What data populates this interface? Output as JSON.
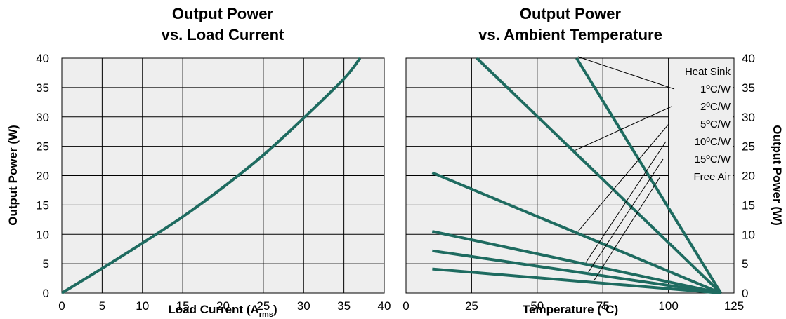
{
  "colors": {
    "series": "#1e6b60",
    "plot_bg": "#eeeeee",
    "grid": "#000000"
  },
  "chart_data": [
    {
      "type": "line",
      "title_line1": "Output Power",
      "title_line2": "vs. Load Current",
      "xlabel": "Load Current (A",
      "xlabel_sub": "rms",
      "xlabel_end": ")",
      "ylabel": "Output Power (W)",
      "xlim": [
        0,
        40
      ],
      "ylim": [
        0,
        40
      ],
      "xticks": [
        0,
        5,
        10,
        15,
        20,
        25,
        30,
        35,
        40
      ],
      "yticks": [
        0,
        5,
        10,
        15,
        20,
        25,
        30,
        35,
        40
      ],
      "grid": true,
      "series": [
        {
          "x": [
            0,
            5,
            10,
            15,
            20,
            25,
            30,
            35,
            37
          ],
          "y": [
            0,
            4.2,
            8.5,
            13.0,
            18.0,
            23.5,
            29.8,
            36.5,
            40
          ]
        }
      ]
    },
    {
      "type": "line",
      "title_line1": "Output Power",
      "title_line2": "vs. Ambient Temperature",
      "xlabel": "Temperature (ºC)",
      "ylabel": "Output Power (W)",
      "xlim": [
        0,
        125
      ],
      "ylim": [
        0,
        40
      ],
      "xticks": [
        0,
        25,
        50,
        75,
        100,
        125
      ],
      "yticks": [
        0,
        5,
        10,
        15,
        20,
        25,
        30,
        35,
        40
      ],
      "grid": true,
      "legend_title": "Heat Sink",
      "series": [
        {
          "name": "1ºC/W",
          "x": [
            65,
            120
          ],
          "y": [
            40,
            0
          ]
        },
        {
          "name": "2ºC/W",
          "x": [
            27,
            120
          ],
          "y": [
            40,
            0
          ]
        },
        {
          "name": "5ºC/W",
          "x": [
            10,
            120
          ],
          "y": [
            20.5,
            0
          ]
        },
        {
          "name": "10ºC/W",
          "x": [
            10,
            120
          ],
          "y": [
            10.5,
            0
          ]
        },
        {
          "name": "15ºC/W",
          "x": [
            10,
            120
          ],
          "y": [
            7.2,
            0
          ]
        },
        {
          "name": "Free Air",
          "x": [
            10,
            120
          ],
          "y": [
            4.1,
            0
          ]
        }
      ]
    }
  ]
}
